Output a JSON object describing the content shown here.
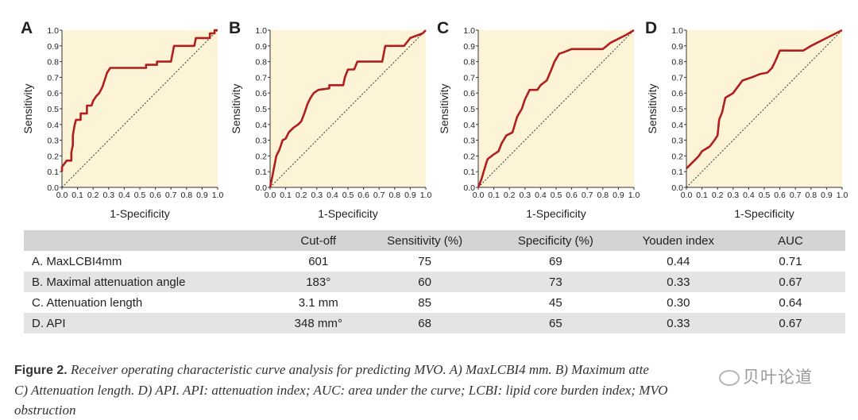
{
  "colors": {
    "curve": "#b01e1e",
    "panel_bg": "#fdf4d8",
    "diagonal": "#333333"
  },
  "chart_data": [
    {
      "type": "line",
      "panel_label": "A",
      "xlabel": "1-Specificity",
      "ylabel": "Sensitivity",
      "xlim": [
        0,
        1
      ],
      "ylim": [
        0,
        1
      ],
      "ticks": [
        "0.0",
        "0.1",
        "0.2",
        "0.3",
        "0.4",
        "0.5",
        "0.6",
        "0.7",
        "0.8",
        "0.9",
        "1.0"
      ],
      "series": [
        {
          "name": "ROC",
          "points": [
            [
              0,
              0.1
            ],
            [
              0,
              0.13
            ],
            [
              0.03,
              0.17
            ],
            [
              0.06,
              0.17
            ],
            [
              0.06,
              0.22
            ],
            [
              0.07,
              0.27
            ],
            [
              0.07,
              0.33
            ],
            [
              0.08,
              0.39
            ],
            [
              0.09,
              0.43
            ],
            [
              0.12,
              0.43
            ],
            [
              0.12,
              0.47
            ],
            [
              0.16,
              0.47
            ],
            [
              0.16,
              0.52
            ],
            [
              0.19,
              0.52
            ],
            [
              0.2,
              0.55
            ],
            [
              0.22,
              0.58
            ],
            [
              0.24,
              0.6
            ],
            [
              0.26,
              0.64
            ],
            [
              0.28,
              0.7
            ],
            [
              0.29,
              0.73
            ],
            [
              0.31,
              0.76
            ],
            [
              0.45,
              0.76
            ],
            [
              0.54,
              0.76
            ],
            [
              0.54,
              0.78
            ],
            [
              0.61,
              0.78
            ],
            [
              0.61,
              0.8
            ],
            [
              0.7,
              0.8
            ],
            [
              0.72,
              0.9
            ],
            [
              0.85,
              0.9
            ],
            [
              0.86,
              0.95
            ],
            [
              0.95,
              0.95
            ],
            [
              0.95,
              0.98
            ],
            [
              0.98,
              0.98
            ],
            [
              0.98,
              1.0
            ],
            [
              1.0,
              1.0
            ]
          ]
        }
      ]
    },
    {
      "type": "line",
      "panel_label": "B",
      "xlabel": "1-Specificity",
      "ylabel": "Sensitivity",
      "xlim": [
        0,
        1
      ],
      "ylim": [
        0,
        1
      ],
      "ticks": [
        "0.0",
        "0.1",
        "0.2",
        "0.3",
        "0.4",
        "0.5",
        "0.6",
        "0.7",
        "0.8",
        "0.9",
        "1.0"
      ],
      "series": [
        {
          "name": "ROC",
          "points": [
            [
              0,
              0.0
            ],
            [
              0.01,
              0.05
            ],
            [
              0.02,
              0.1
            ],
            [
              0.03,
              0.15
            ],
            [
              0.04,
              0.2
            ],
            [
              0.06,
              0.24
            ],
            [
              0.08,
              0.3
            ],
            [
              0.1,
              0.31
            ],
            [
              0.12,
              0.35
            ],
            [
              0.15,
              0.38
            ],
            [
              0.18,
              0.4
            ],
            [
              0.2,
              0.42
            ],
            [
              0.22,
              0.47
            ],
            [
              0.24,
              0.53
            ],
            [
              0.26,
              0.57
            ],
            [
              0.28,
              0.6
            ],
            [
              0.31,
              0.62
            ],
            [
              0.38,
              0.63
            ],
            [
              0.38,
              0.65
            ],
            [
              0.47,
              0.65
            ],
            [
              0.48,
              0.7
            ],
            [
              0.5,
              0.75
            ],
            [
              0.54,
              0.75
            ],
            [
              0.56,
              0.8
            ],
            [
              0.72,
              0.8
            ],
            [
              0.74,
              0.9
            ],
            [
              0.86,
              0.9
            ],
            [
              0.9,
              0.95
            ],
            [
              0.98,
              0.98
            ],
            [
              1.0,
              1.0
            ]
          ]
        }
      ]
    },
    {
      "type": "line",
      "panel_label": "C",
      "xlabel": "1-Specificity",
      "ylabel": "Sensitivity",
      "xlim": [
        0,
        1
      ],
      "ylim": [
        0,
        1
      ],
      "ticks": [
        "0.0",
        "0.1",
        "0.2",
        "0.3",
        "0.4",
        "0.5",
        "0.6",
        "0.7",
        "0.8",
        "0.9",
        "1.0"
      ],
      "series": [
        {
          "name": "ROC",
          "points": [
            [
              0,
              0.0
            ],
            [
              0.02,
              0.05
            ],
            [
              0.05,
              0.15
            ],
            [
              0.06,
              0.18
            ],
            [
              0.1,
              0.21
            ],
            [
              0.13,
              0.23
            ],
            [
              0.15,
              0.28
            ],
            [
              0.18,
              0.33
            ],
            [
              0.22,
              0.35
            ],
            [
              0.25,
              0.45
            ],
            [
              0.28,
              0.5
            ],
            [
              0.3,
              0.56
            ],
            [
              0.33,
              0.62
            ],
            [
              0.38,
              0.62
            ],
            [
              0.4,
              0.65
            ],
            [
              0.44,
              0.68
            ],
            [
              0.47,
              0.75
            ],
            [
              0.49,
              0.8
            ],
            [
              0.52,
              0.85
            ],
            [
              0.55,
              0.86
            ],
            [
              0.6,
              0.88
            ],
            [
              0.8,
              0.88
            ],
            [
              0.85,
              0.92
            ],
            [
              0.95,
              0.97
            ],
            [
              1.0,
              1.0
            ]
          ]
        }
      ]
    },
    {
      "type": "line",
      "panel_label": "D",
      "xlabel": "1-Specificity",
      "ylabel": "Sensitivity",
      "xlim": [
        0,
        1
      ],
      "ylim": [
        0,
        1
      ],
      "ticks": [
        "0.0",
        "0.1",
        "0.2",
        "0.3",
        "0.4",
        "0.5",
        "0.6",
        "0.7",
        "0.8",
        "0.9",
        "1.0"
      ],
      "series": [
        {
          "name": "ROC",
          "points": [
            [
              0,
              0.12
            ],
            [
              0.03,
              0.15
            ],
            [
              0.06,
              0.18
            ],
            [
              0.08,
              0.2
            ],
            [
              0.1,
              0.23
            ],
            [
              0.15,
              0.26
            ],
            [
              0.18,
              0.3
            ],
            [
              0.2,
              0.33
            ],
            [
              0.21,
              0.43
            ],
            [
              0.23,
              0.48
            ],
            [
              0.25,
              0.57
            ],
            [
              0.3,
              0.6
            ],
            [
              0.33,
              0.64
            ],
            [
              0.36,
              0.68
            ],
            [
              0.42,
              0.7
            ],
            [
              0.47,
              0.72
            ],
            [
              0.52,
              0.73
            ],
            [
              0.55,
              0.76
            ],
            [
              0.57,
              0.8
            ],
            [
              0.6,
              0.87
            ],
            [
              0.75,
              0.87
            ],
            [
              0.8,
              0.9
            ],
            [
              0.9,
              0.95
            ],
            [
              1.0,
              1.0
            ]
          ]
        }
      ]
    }
  ],
  "table": {
    "headers": [
      "",
      "Cut-off",
      "Sensitivity (%)",
      "Specificity (%)",
      "Youden index",
      "AUC"
    ],
    "rows": [
      [
        "A. MaxLCBI4mm",
        "601",
        "75",
        "69",
        "0.44",
        "0.71"
      ],
      [
        "B. Maximal attenuation angle",
        "183°",
        "60",
        "73",
        "0.33",
        "0.67"
      ],
      [
        "C. Attenuation length",
        "3.1 mm",
        "85",
        "45",
        "0.30",
        "0.64"
      ],
      [
        "D. API",
        "348 mm°",
        "68",
        "65",
        "0.33",
        "0.67"
      ]
    ]
  },
  "caption": {
    "label": "Figure 2.",
    "line1": "Receiver operating characteristic curve analysis for predicting MVO. A) MaxLCBI4 mm. B) Maximum atte",
    "line2": "C) Attenuation length. D) API. API: attenuation index; AUC: area under the curve; LCBI: lipid core burden index; MVO",
    "line3": "obstruction"
  }
}
